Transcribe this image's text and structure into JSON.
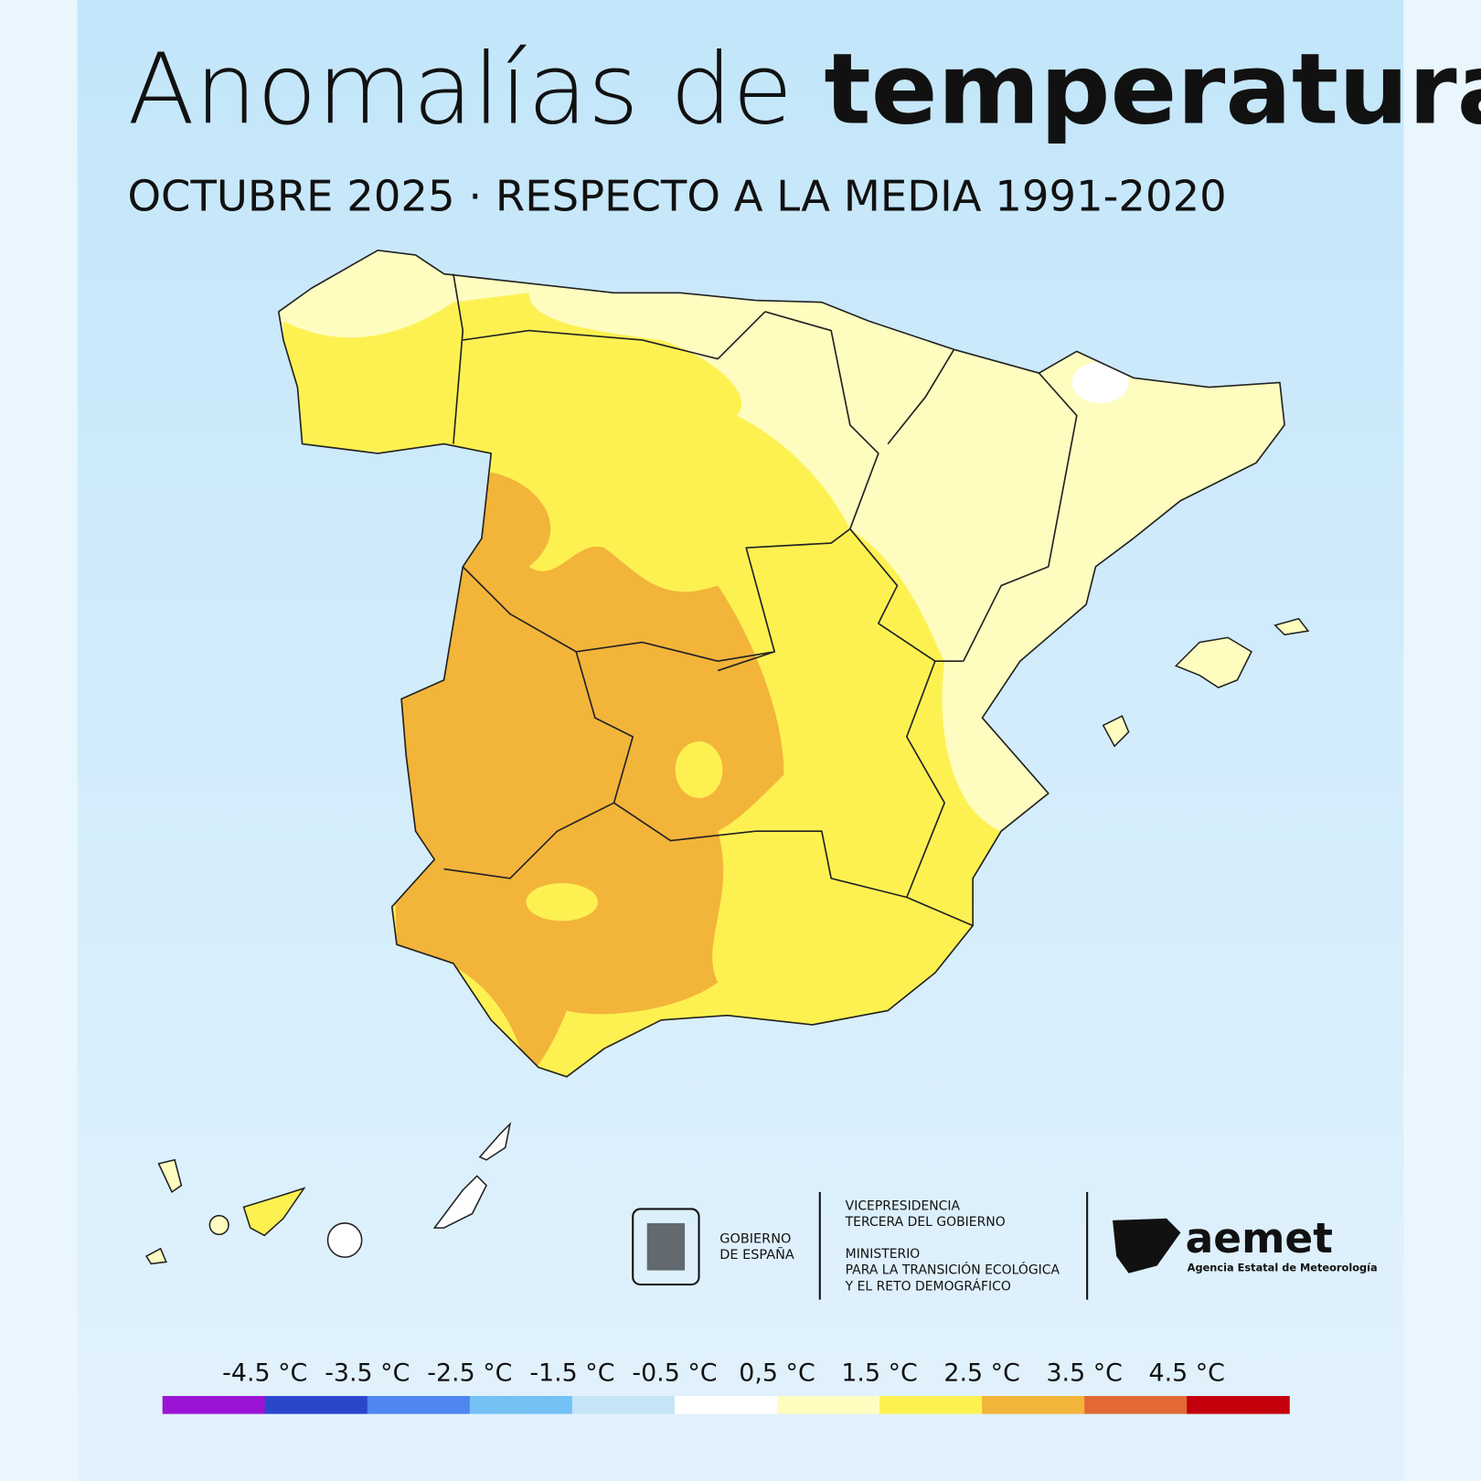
{
  "title": {
    "light": "Anomalías de",
    "bold": "temperatura"
  },
  "subtitle": "OCTUBRE 2025 · RESPECTO A LA MEDIA 1991-2020",
  "footer": {
    "gobierno": [
      "GOBIERNO",
      "DE ESPAÑA"
    ],
    "ministerio": [
      "VICEPRESIDENCIA",
      "TERCERA DEL GOBIERNO",
      "MINISTERIO",
      "PARA LA TRANSICIÓN ECOLÓGICA",
      "Y EL RETO DEMOGRÁFICO"
    ],
    "aemet": {
      "name": "aemet",
      "full": "Agencia Estatal de Meteorología"
    }
  },
  "legend": {
    "labels": [
      "-4.5 °C",
      "-3.5 °C",
      "-2.5 °C",
      "-1.5 °C",
      "-0.5 °C",
      "0,5 °C",
      "1.5 °C",
      "2.5 °C",
      "3.5 °C",
      "4.5 °C"
    ],
    "colors": [
      "#9b14d6",
      "#2a47cc",
      "#4f86f0",
      "#74c2f5",
      "#c6e4f7",
      "#ffffff",
      "#fffcc0",
      "#fdf152",
      "#f3b43a",
      "#e36a35",
      "#c4000d"
    ]
  }
}
